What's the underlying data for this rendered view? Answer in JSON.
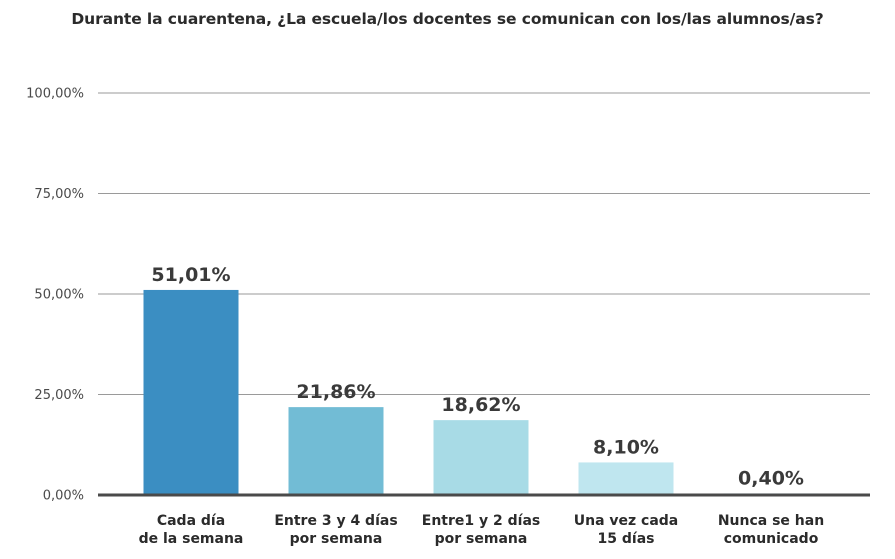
{
  "chart_data": {
    "type": "bar",
    "title": "Durante la cuarentena, ¿La escuela/los docentes se comunican con los/las alumnos/as?",
    "xlabel": "",
    "ylabel": "",
    "ylim": [
      0,
      100
    ],
    "yticks": [
      "0,00%",
      "25,00%",
      "50,00%",
      "75,00%",
      "100,00%"
    ],
    "ytick_values": [
      0,
      25,
      50,
      75,
      100
    ],
    "grid": true,
    "categories": [
      [
        "Cada día",
        "de la semana"
      ],
      [
        "Entre 3 y 4 días",
        "por semana"
      ],
      [
        "Entre1 y 2 días",
        "por semana"
      ],
      [
        "Una vez cada",
        "15 días"
      ],
      [
        "Nunca se han",
        "comunicado"
      ]
    ],
    "values": [
      51.01,
      21.86,
      18.62,
      8.1,
      0.4
    ],
    "value_labels": [
      "51,01%",
      "21,86%",
      "18,62%",
      "8,10%",
      "0,40%"
    ],
    "colors": [
      "#3b8ec2",
      "#72bcd5",
      "#a8dbe6",
      "#bfe6ef",
      "#d6eef4"
    ]
  }
}
